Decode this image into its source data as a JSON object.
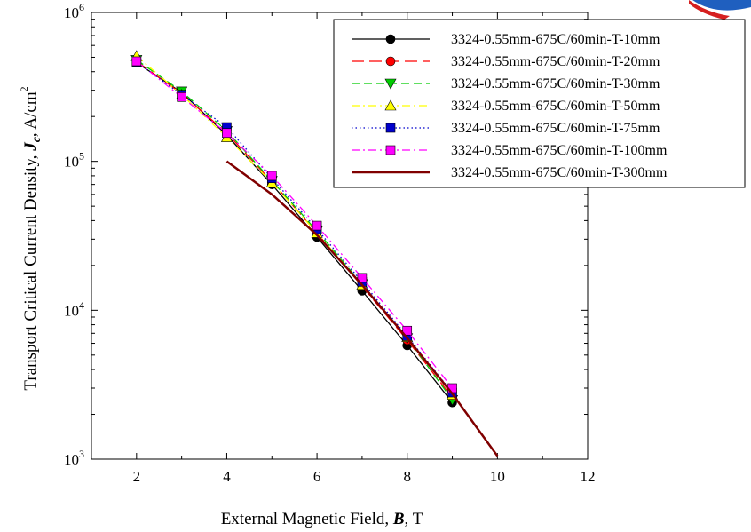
{
  "chart_data": {
    "type": "line",
    "title": "",
    "xlabel_parts": [
      "External Magnetic Field, ",
      "B",
      ", T"
    ],
    "ylabel_parts": [
      "Transport Critical Current Density, ",
      "J",
      "c",
      ", A/cm",
      "2"
    ],
    "xlim": [
      1,
      12
    ],
    "ylim": [
      1000,
      1000000
    ],
    "yscale": "log",
    "x_ticks": [
      2,
      4,
      6,
      8,
      10,
      12
    ],
    "y_ticks": [
      {
        "value": 1000,
        "base": "10",
        "exp": "3"
      },
      {
        "value": 10000,
        "base": "10",
        "exp": "4"
      },
      {
        "value": 100000,
        "base": "10",
        "exp": "5"
      },
      {
        "value": 1000000,
        "base": "10",
        "exp": "6"
      }
    ],
    "grid": false,
    "legend_position": "top-right",
    "series": [
      {
        "name": "3324-0.55mm-675C/60min-T-10mm",
        "color": "#000000",
        "dash": "solid",
        "marker": "circle",
        "x": [
          2,
          3,
          4,
          5,
          6,
          7,
          8,
          9
        ],
        "y": [
          460000,
          290000,
          150000,
          70000,
          31000,
          13500,
          5800,
          2400
        ]
      },
      {
        "name": "3324-0.55mm-675C/60min-T-20mm",
        "color": "#ff0000",
        "dash": "long-dash",
        "marker": "circle",
        "x": [
          2,
          3,
          4,
          5,
          6,
          7,
          8,
          9
        ],
        "y": [
          470000,
          285000,
          155000,
          73000,
          33000,
          14500,
          6300,
          2600
        ]
      },
      {
        "name": "3324-0.55mm-675C/60min-T-30mm",
        "color": "#00cc00",
        "dash": "dash",
        "marker": "triangle-down",
        "x": [
          2,
          3,
          4,
          5,
          6,
          7,
          8,
          9
        ],
        "y": [
          480000,
          295000,
          160000,
          74000,
          34000,
          15000,
          6500,
          2500
        ]
      },
      {
        "name": "3324-0.55mm-675C/60min-T-50mm",
        "color": "#ffff00",
        "dash": "dash-dot",
        "marker": "triangle-up",
        "x": [
          2,
          3,
          4,
          5,
          6,
          7,
          8,
          9
        ],
        "y": [
          510000,
          280000,
          145000,
          72000,
          33000,
          14800,
          6600,
          2700
        ]
      },
      {
        "name": "3324-0.55mm-675C/60min-T-75mm",
        "color": "#0000cc",
        "dash": "dotted",
        "marker": "square",
        "x": [
          2,
          3,
          4,
          5,
          6,
          7,
          8,
          9
        ],
        "y": [
          465000,
          280000,
          170000,
          77000,
          35000,
          15500,
          6700,
          2800
        ]
      },
      {
        "name": "3324-0.55mm-675C/60min-T-100mm",
        "color": "#ff00ff",
        "dash": "dash-dot",
        "marker": "square",
        "x": [
          2,
          3,
          4,
          5,
          6,
          7,
          8,
          9
        ],
        "y": [
          470000,
          270000,
          155000,
          80000,
          37000,
          16500,
          7300,
          3000
        ]
      },
      {
        "name": "3324-0.55mm-675C/60min-T-300mm",
        "color": "#800000",
        "dash": "solid",
        "marker": "none",
        "x": [
          4,
          5,
          6,
          7,
          8,
          9,
          10
        ],
        "y": [
          100000,
          60000,
          32000,
          14800,
          6500,
          2750,
          1050
        ]
      }
    ]
  }
}
